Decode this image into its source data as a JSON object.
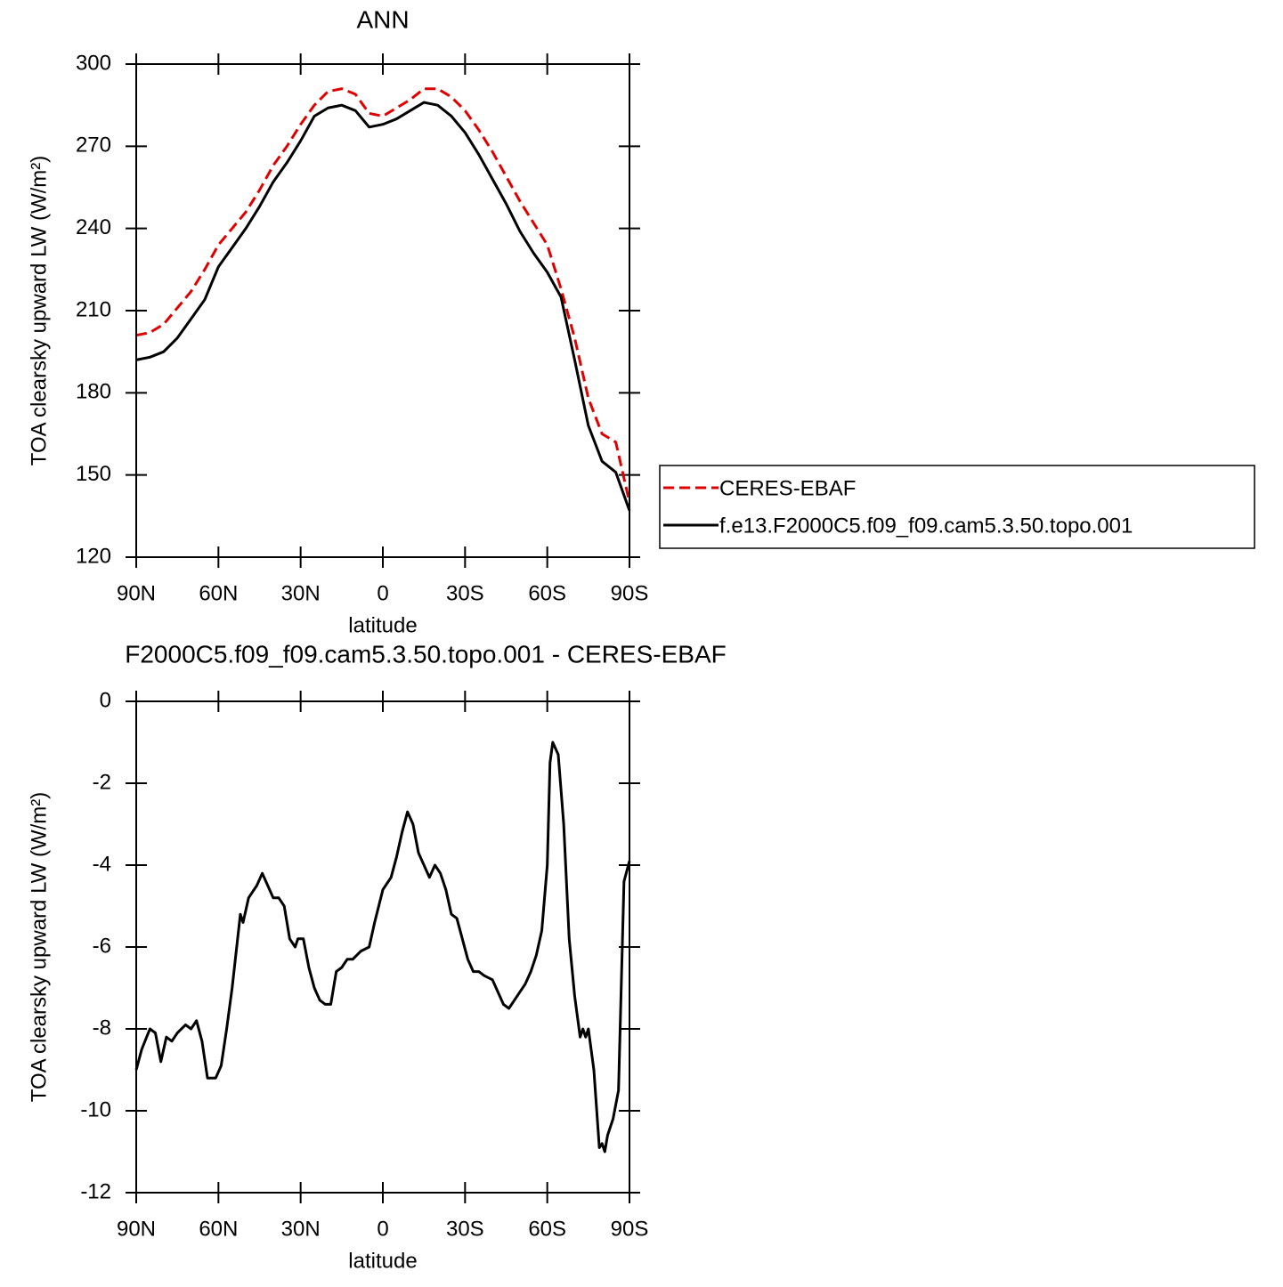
{
  "chart_data": [
    {
      "type": "line",
      "title": "ANN",
      "x_label": "latitude",
      "y_label": "TOA clearsky upward LW (W/m²)",
      "xlim": [
        90,
        -90
      ],
      "xticks": [
        {
          "value": 90,
          "label": "90N"
        },
        {
          "value": 60,
          "label": "60N"
        },
        {
          "value": 30,
          "label": "30N"
        },
        0,
        {
          "value": -30,
          "label": "30S"
        },
        {
          "value": -60,
          "label": "60S"
        },
        {
          "value": -90,
          "label": "90S"
        }
      ],
      "ylim": [
        120,
        300
      ],
      "yticks": [
        120,
        150,
        180,
        210,
        240,
        270,
        300
      ],
      "x": [
        90,
        85,
        80,
        75,
        70,
        65,
        60,
        55,
        50,
        45,
        40,
        35,
        30,
        25,
        20,
        15,
        10,
        5,
        0,
        -5,
        -10,
        -15,
        -20,
        -25,
        -30,
        -35,
        -40,
        -45,
        -50,
        -55,
        -60,
        -65,
        -70,
        -75,
        -80,
        -85,
        -90
      ],
      "series": [
        {
          "name": "CERES-EBAF",
          "color": "#e00000",
          "dashed": true,
          "values": [
            201,
            202,
            205,
            211,
            217,
            225,
            234,
            240,
            246,
            254,
            263,
            270,
            278,
            285,
            290,
            291,
            289,
            282,
            281,
            284,
            287,
            291,
            291,
            288,
            283,
            276,
            268,
            259,
            250,
            242,
            234,
            218,
            200,
            178,
            165,
            162,
            140
          ]
        },
        {
          "name": "f.e13.F2000C5.f09_f09.cam5.3.50.topo.001",
          "color": "#000000",
          "dashed": false,
          "values": [
            192,
            193,
            195,
            200,
            207,
            214,
            226,
            233,
            240,
            248,
            257,
            264,
            272,
            281,
            284,
            285,
            283,
            277,
            278,
            280,
            283,
            286,
            285,
            281,
            275,
            267,
            258,
            249,
            239,
            231,
            224,
            215,
            192,
            168,
            155,
            151,
            137
          ]
        }
      ]
    },
    {
      "type": "line",
      "title": "F2000C5.f09_f09.cam5.3.50.topo.001 - CERES-EBAF",
      "x_label": "latitude",
      "y_label": "TOA clearsky upward LW (W/m²)",
      "xlim": [
        90,
        -90
      ],
      "xticks": [
        {
          "value": 90,
          "label": "90N"
        },
        {
          "value": 60,
          "label": "60N"
        },
        {
          "value": 30,
          "label": "30N"
        },
        0,
        {
          "value": -30,
          "label": "30S"
        },
        {
          "value": -60,
          "label": "60S"
        },
        {
          "value": -90,
          "label": "90S"
        }
      ],
      "ylim": [
        -12,
        0
      ],
      "yticks": [
        -12,
        -10,
        -8,
        -6,
        -4,
        -2,
        0
      ],
      "x": [
        90,
        88,
        85,
        83,
        81,
        79,
        77,
        75,
        72,
        70,
        68,
        66,
        64,
        61,
        59,
        57,
        55,
        52,
        51,
        49,
        47,
        46,
        44,
        42,
        40,
        38,
        36,
        34,
        32,
        31,
        29,
        27,
        25,
        23,
        21,
        19,
        17,
        15,
        13,
        11,
        8,
        5,
        3,
        0,
        -3,
        -5,
        -7,
        -9,
        -11,
        -13,
        -15,
        -17,
        -19,
        -21,
        -23,
        -25,
        -27,
        -29,
        -31,
        -33,
        -35,
        -37,
        -40,
        -42,
        -44,
        -46,
        -48,
        -50,
        -52,
        -54,
        -56,
        -58,
        -60,
        -61,
        -62,
        -64,
        -66,
        -68,
        -70,
        -72,
        -73,
        -74,
        -75,
        -77,
        -79,
        -80,
        -81,
        -82,
        -84,
        -86,
        -88,
        -90
      ],
      "series": [
        {
          "color": "#000000",
          "dashed": false,
          "values": [
            -9.0,
            -8.5,
            -8.0,
            -8.1,
            -8.8,
            -8.2,
            -8.3,
            -8.1,
            -7.9,
            -8.0,
            -7.8,
            -8.3,
            -9.2,
            -9.2,
            -8.9,
            -8.0,
            -7.0,
            -5.2,
            -5.4,
            -4.8,
            -4.6,
            -4.5,
            -4.2,
            -4.5,
            -4.8,
            -4.8,
            -5.0,
            -5.8,
            -6.0,
            -5.8,
            -5.8,
            -6.5,
            -7.0,
            -7.3,
            -7.4,
            -7.4,
            -6.6,
            -6.5,
            -6.3,
            -6.3,
            -6.1,
            -6.0,
            -5.4,
            -4.6,
            -4.3,
            -3.8,
            -3.2,
            -2.7,
            -3.0,
            -3.7,
            -4.0,
            -4.3,
            -4.0,
            -4.2,
            -4.6,
            -5.2,
            -5.3,
            -5.8,
            -6.3,
            -6.6,
            -6.6,
            -6.7,
            -6.8,
            -7.1,
            -7.4,
            -7.5,
            -7.3,
            -7.1,
            -6.9,
            -6.6,
            -6.2,
            -5.6,
            -4.0,
            -1.5,
            -1.0,
            -1.3,
            -3.0,
            -5.8,
            -7.2,
            -8.2,
            -8.0,
            -8.2,
            -8.0,
            -9.0,
            -10.9,
            -10.8,
            -11.0,
            -10.6,
            -10.2,
            -9.5,
            -4.4,
            -3.9
          ]
        }
      ]
    }
  ]
}
